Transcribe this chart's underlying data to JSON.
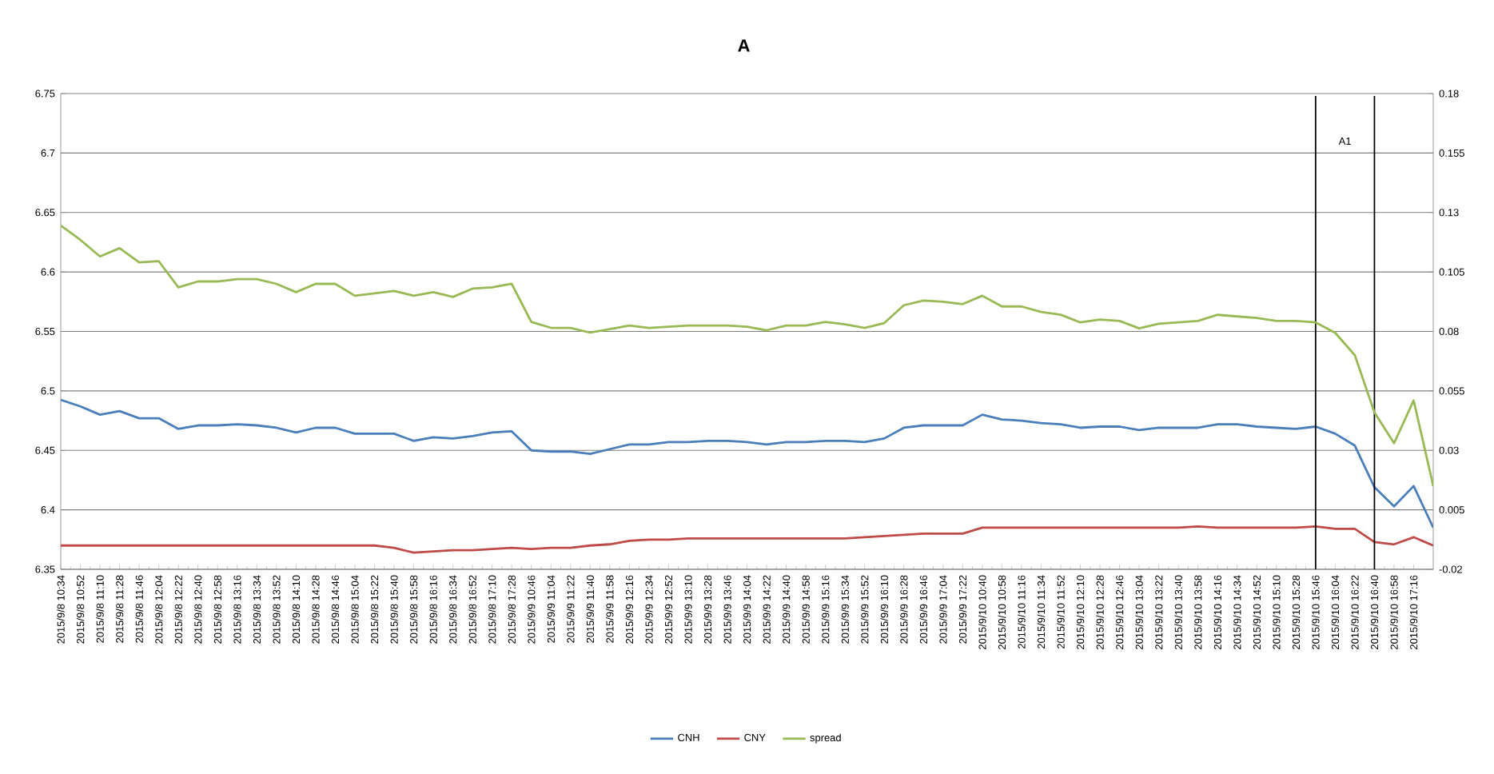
{
  "chart_data": {
    "type": "line",
    "title": "A",
    "categories": [
      "2015/9/8 10:34",
      "2015/9/8 10:52",
      "2015/9/8 11:10",
      "2015/9/8 11:28",
      "2015/9/8 11:46",
      "2015/9/8 12:04",
      "2015/9/8 12:22",
      "2015/9/8 12:40",
      "2015/9/8 12:58",
      "2015/9/8 13:16",
      "2015/9/8 13:34",
      "2015/9/8 13:52",
      "2015/9/8 14:10",
      "2015/9/8 14:28",
      "2015/9/8 14:46",
      "2015/9/8 15:04",
      "2015/9/8 15:22",
      "2015/9/8 15:40",
      "2015/9/8 15:58",
      "2015/9/8 16:16",
      "2015/9/8 16:34",
      "2015/9/8 16:52",
      "2015/9/8 17:10",
      "2015/9/8 17:28",
      "2015/9/9 10:46",
      "2015/9/9 11:04",
      "2015/9/9 11:22",
      "2015/9/9 11:40",
      "2015/9/9 11:58",
      "2015/9/9 12:16",
      "2015/9/9 12:34",
      "2015/9/9 12:52",
      "2015/9/9 13:10",
      "2015/9/9 13:28",
      "2015/9/9 13:46",
      "2015/9/9 14:04",
      "2015/9/9 14:22",
      "2015/9/9 14:40",
      "2015/9/9 14:58",
      "2015/9/9 15:16",
      "2015/9/9 15:34",
      "2015/9/9 15:52",
      "2015/9/9 16:10",
      "2015/9/9 16:28",
      "2015/9/9 16:46",
      "2015/9/9 17:04",
      "2015/9/9 17:22",
      "2015/9/10 10:40",
      "2015/9/10 10:58",
      "2015/9/10 11:16",
      "2015/9/10 11:34",
      "2015/9/10 11:52",
      "2015/9/10 12:10",
      "2015/9/10 12:28",
      "2015/9/10 12:46",
      "2015/9/10 13:04",
      "2015/9/10 13:22",
      "2015/9/10 13:40",
      "2015/9/10 13:58",
      "2015/9/10 14:16",
      "2015/9/10 14:34",
      "2015/9/10 14:52",
      "2015/9/10 15:10",
      "2015/9/10 15:28",
      "2015/9/10 15:46",
      "2015/9/10 16:04",
      "2015/9/10 16:22",
      "2015/9/10 16:40",
      "2015/9/10 16:58",
      "2015/9/10 17:16",
      null
    ],
    "series": [
      {
        "name": "CNH",
        "color": "#4a7ebb",
        "values": [
          6.4925,
          6.487,
          6.48,
          6.483,
          6.477,
          6.477,
          6.468,
          6.471,
          6.471,
          6.472,
          6.471,
          6.469,
          6.465,
          6.469,
          6.469,
          6.464,
          6.464,
          6.464,
          6.458,
          6.461,
          6.46,
          6.462,
          6.465,
          6.466,
          6.45,
          6.449,
          6.449,
          6.447,
          6.451,
          6.455,
          6.455,
          6.457,
          6.457,
          6.458,
          6.458,
          6.457,
          6.455,
          6.457,
          6.457,
          6.458,
          6.458,
          6.457,
          6.46,
          6.469,
          6.471,
          6.471,
          6.471,
          6.48,
          6.476,
          6.475,
          6.473,
          6.472,
          6.469,
          6.47,
          6.47,
          6.467,
          6.469,
          6.469,
          6.469,
          6.472,
          6.472,
          6.47,
          6.469,
          6.468,
          6.47,
          6.464,
          6.454,
          6.419,
          6.403,
          6.42,
          6.385
        ]
      },
      {
        "name": "CNY",
        "color": "#be4b48",
        "values": [
          6.37,
          6.37,
          6.37,
          6.37,
          6.37,
          6.37,
          6.37,
          6.37,
          6.37,
          6.37,
          6.37,
          6.37,
          6.37,
          6.37,
          6.37,
          6.37,
          6.37,
          6.368,
          6.364,
          6.365,
          6.366,
          6.366,
          6.367,
          6.368,
          6.367,
          6.368,
          6.368,
          6.37,
          6.371,
          6.374,
          6.375,
          6.375,
          6.376,
          6.376,
          6.376,
          6.376,
          6.376,
          6.376,
          6.376,
          6.376,
          6.376,
          6.377,
          6.378,
          6.379,
          6.38,
          6.38,
          6.38,
          6.385,
          6.385,
          6.385,
          6.385,
          6.385,
          6.385,
          6.385,
          6.385,
          6.385,
          6.385,
          6.385,
          6.386,
          6.385,
          6.385,
          6.385,
          6.385,
          6.385,
          6.386,
          6.384,
          6.384,
          6.373,
          6.371,
          6.377,
          6.37
        ]
      },
      {
        "name": "spread",
        "color": "#98b954",
        "axis": "y2",
        "values": [
          0.1245,
          0.1185,
          0.1115,
          0.115,
          0.109,
          0.1095,
          0.0985,
          0.101,
          0.101,
          0.102,
          0.102,
          0.1,
          0.0965,
          0.1,
          0.1,
          0.095,
          0.096,
          0.097,
          0.095,
          0.0965,
          0.0945,
          0.098,
          0.0985,
          0.1,
          0.084,
          0.0815,
          0.0815,
          0.0795,
          0.081,
          0.0825,
          0.0815,
          0.082,
          0.0825,
          0.0825,
          0.0825,
          0.082,
          0.0805,
          0.0825,
          0.0825,
          0.084,
          0.083,
          0.0815,
          0.0835,
          0.091,
          0.093,
          0.0925,
          0.0915,
          0.095,
          0.0905,
          0.0905,
          0.0882,
          0.087,
          0.0838,
          0.085,
          0.0844,
          0.0813,
          0.0832,
          0.0838,
          0.0844,
          0.087,
          0.0863,
          0.0857,
          0.0844,
          0.0844,
          0.0838,
          0.0794,
          0.07,
          0.046,
          0.033,
          0.051,
          0.015
        ]
      }
    ],
    "ylim": [
      6.35,
      6.75
    ],
    "yticks": [
      6.35,
      6.4,
      6.45,
      6.5,
      6.55,
      6.6,
      6.65,
      6.7,
      6.75
    ],
    "y2lim": [
      -0.02,
      0.18
    ],
    "y2ticks": [
      -0.02,
      0.005,
      0.03,
      0.055,
      0.08,
      0.105,
      0.13,
      0.155,
      0.18
    ],
    "grid": "y",
    "legend": "bottom",
    "marker": "none",
    "line_style": "solid",
    "ref_lines": [
      {
        "axis": "x",
        "value": "2015/9/10 15:46",
        "color": "#000000"
      },
      {
        "axis": "x",
        "value": "2015/9/10 16:40",
        "color": "#000000"
      }
    ],
    "annotations": [
      "A1"
    ]
  }
}
